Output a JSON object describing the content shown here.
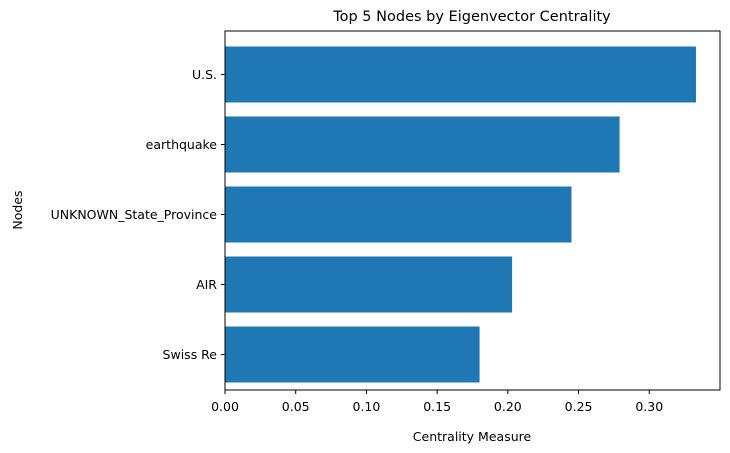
{
  "chart_data": {
    "type": "bar",
    "orientation": "horizontal",
    "title": "Top 5 Nodes by Eigenvector Centrality",
    "xlabel": "Centrality Measure",
    "ylabel": "Nodes",
    "categories": [
      "U.S.",
      "earthquake",
      "UNKNOWN_State_Province",
      "AIR",
      "Swiss Re"
    ],
    "values": [
      0.333,
      0.279,
      0.245,
      0.203,
      0.18
    ],
    "xlim": [
      0,
      0.35
    ],
    "xticks": [
      "0.00",
      "0.05",
      "0.10",
      "0.15",
      "0.20",
      "0.25",
      "0.30"
    ],
    "grid": false,
    "legend": "none",
    "bar_color": "#1f77b4"
  }
}
